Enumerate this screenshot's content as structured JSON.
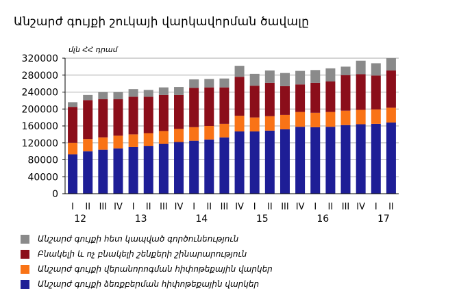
{
  "chart_data": {
    "type": "bar",
    "stacked": true,
    "title": "Անշարժ գույքի շուկայի վարկավորման ծավալը",
    "unit_label": "մլն ՀՀ դրամ",
    "ylim": [
      0,
      320000
    ],
    "yticks": [
      0,
      40000,
      80000,
      120000,
      160000,
      200000,
      240000,
      280000,
      320000
    ],
    "grid": true,
    "legend_position": "bottom",
    "categories": [
      "I",
      "II",
      "III",
      "IV",
      "I",
      "II",
      "III",
      "IV",
      "I",
      "II",
      "III",
      "IV",
      "I",
      "II",
      "III",
      "IV",
      "I",
      "II",
      "III",
      "IV",
      "I",
      "II"
    ],
    "year_labels": [
      {
        "label": "12",
        "start": 0
      },
      {
        "label": "13",
        "start": 4
      },
      {
        "label": "14",
        "start": 8
      },
      {
        "label": "15",
        "start": 12
      },
      {
        "label": "16",
        "start": 16
      },
      {
        "label": "17",
        "start": 20
      }
    ],
    "series": [
      {
        "name": "Անշարժ գույքի ձեռքբերման հիփոթեքային վարկեր",
        "color": "#1e1e96",
        "values": [
          93000,
          100000,
          104000,
          107000,
          110000,
          113000,
          118000,
          122000,
          125000,
          128000,
          133000,
          147000,
          147000,
          149000,
          152000,
          158000,
          157000,
          158000,
          162000,
          164000,
          165000,
          168000
        ]
      },
      {
        "name": "Անշարժ գույքի վերանորոգման հիփոթեքային վարկեր",
        "color": "#f97316",
        "values": [
          27000,
          29000,
          29000,
          30000,
          30000,
          30000,
          30000,
          31000,
          32000,
          32000,
          32000,
          37000,
          33000,
          34000,
          34000,
          35000,
          34000,
          35000,
          34000,
          34000,
          34000,
          35000
        ]
      },
      {
        "name": "Բնակելի և ոչ բնակելի շենքերի շինարարություն",
        "color": "#8b0e1a",
        "values": [
          85000,
          92000,
          90000,
          86000,
          89000,
          86000,
          85000,
          80000,
          93000,
          91000,
          86000,
          92000,
          75000,
          79000,
          68000,
          65000,
          71000,
          72000,
          84000,
          84000,
          80000,
          88000
        ]
      },
      {
        "name": "Անշարժ գույքի հետ կապված գործունեություն",
        "color": "#8a8a8a",
        "values": [
          11000,
          12000,
          17000,
          17000,
          18000,
          16000,
          18000,
          19000,
          20000,
          20000,
          21000,
          26000,
          28000,
          29000,
          31000,
          32000,
          30000,
          31000,
          20000,
          32000,
          29000,
          29000
        ]
      }
    ]
  }
}
